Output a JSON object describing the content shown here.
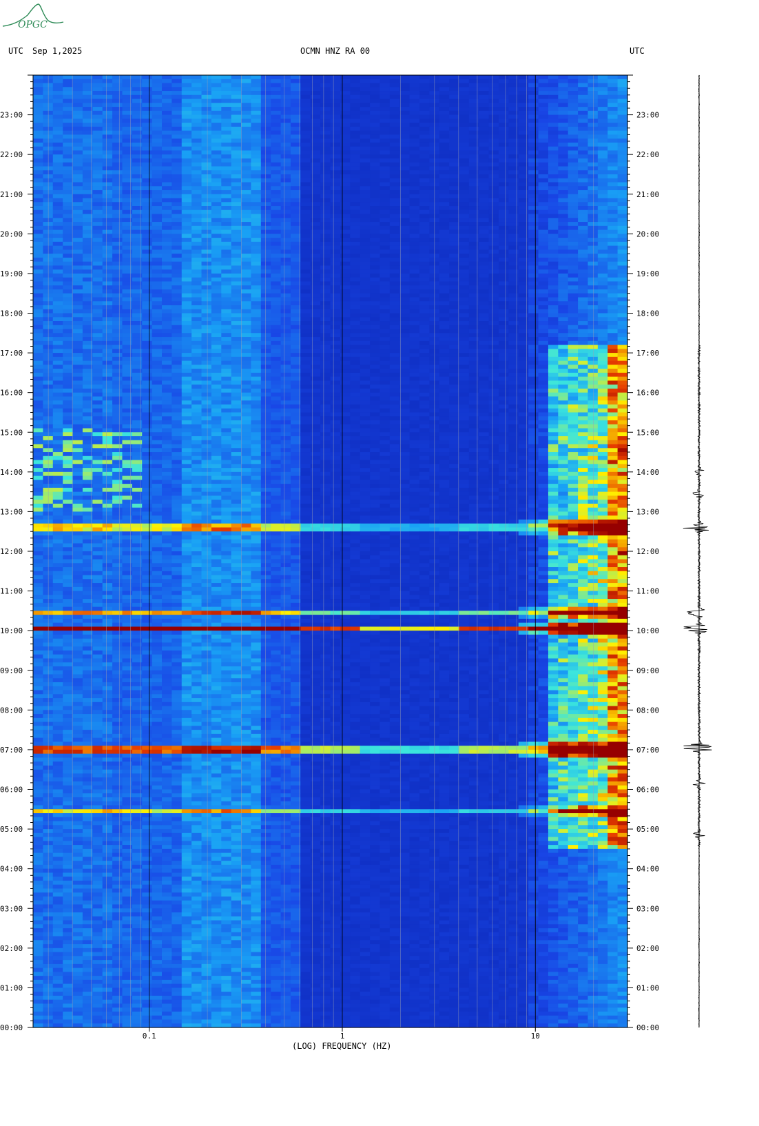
{
  "header": {
    "left_tz": "UTC",
    "date": "Sep 1,2025",
    "station": "OCMN HNZ RA 00",
    "right_tz": "UTC"
  },
  "logo": {
    "text": "OPGC"
  },
  "chart_data": {
    "type": "heatmap",
    "title": "OCMN HNZ RA 00",
    "xlabel": "(LOG) FREQUENCY (HZ)",
    "ylabel": "",
    "x_scale": "log",
    "xlim": [
      0.025,
      30
    ],
    "x_ticks": [
      {
        "value": 0.1,
        "label": "0.1"
      },
      {
        "value": 1,
        "label": "1"
      },
      {
        "value": 10,
        "label": "10"
      }
    ],
    "ylim_hours": [
      0,
      24
    ],
    "y_ticks": [
      "00:00",
      "01:00",
      "02:00",
      "03:00",
      "04:00",
      "05:00",
      "06:00",
      "07:00",
      "08:00",
      "09:00",
      "10:00",
      "11:00",
      "12:00",
      "13:00",
      "14:00",
      "15:00",
      "16:00",
      "17:00",
      "18:00",
      "19:00",
      "20:00",
      "21:00",
      "22:00",
      "23:00"
    ],
    "colors": {
      "background": "#1a3cd8",
      "low": "#0a27b8",
      "mid": "#19a0f0",
      "high": "#fff200",
      "peak": "#9a0000"
    },
    "events": [
      {
        "time_h": 5.45,
        "intensity": 0.55
      },
      {
        "time_h": 7.0,
        "intensity": 1.0
      },
      {
        "time_h": 10.05,
        "intensity": 1.0
      },
      {
        "time_h": 10.45,
        "intensity": 0.65
      },
      {
        "time_h": 12.6,
        "intensity": 0.75
      }
    ],
    "high_freq_noise_window_h": [
      4.5,
      17.2
    ],
    "seismogram_bursts": [
      {
        "time_h": 4.85,
        "amplitude": 0.25
      },
      {
        "time_h": 6.15,
        "amplitude": 0.3
      },
      {
        "time_h": 7.05,
        "amplitude": 1.0
      },
      {
        "time_h": 10.05,
        "amplitude": 1.0
      },
      {
        "time_h": 10.45,
        "amplitude": 0.55
      },
      {
        "time_h": 12.6,
        "amplitude": 0.95
      },
      {
        "time_h": 13.45,
        "amplitude": 0.3
      },
      {
        "time_h": 14.0,
        "amplitude": 0.25
      }
    ]
  }
}
